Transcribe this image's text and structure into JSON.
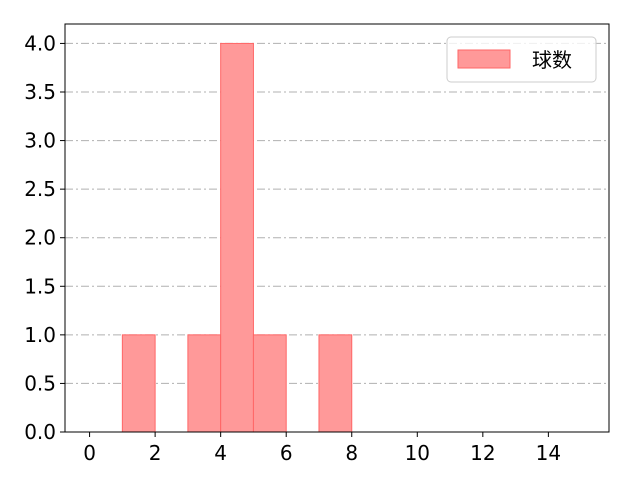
{
  "chart_data": {
    "type": "bar",
    "subtype": "histogram",
    "bins": [
      [
        1,
        2
      ],
      [
        3,
        4
      ],
      [
        4,
        5
      ],
      [
        5,
        6
      ],
      [
        7,
        8
      ]
    ],
    "values": [
      1,
      1,
      4,
      1,
      1
    ],
    "xlim": [
      -0.75,
      15.85
    ],
    "ylim": [
      0,
      4.2
    ],
    "xticks": [
      "0",
      "2",
      "4",
      "6",
      "8",
      "10",
      "12",
      "14"
    ],
    "yticks": [
      "0.0",
      "0.5",
      "1.0",
      "1.5",
      "2.0",
      "2.5",
      "3.0",
      "3.5",
      "4.0"
    ],
    "grid": "horizontal dash-dot",
    "legend": {
      "placement": "top-right",
      "entries": [
        "球数"
      ]
    },
    "colors": {
      "bar_fill": "#ff9999",
      "bar_edge": "#ff6666",
      "grid": "#b0b0b0"
    }
  }
}
